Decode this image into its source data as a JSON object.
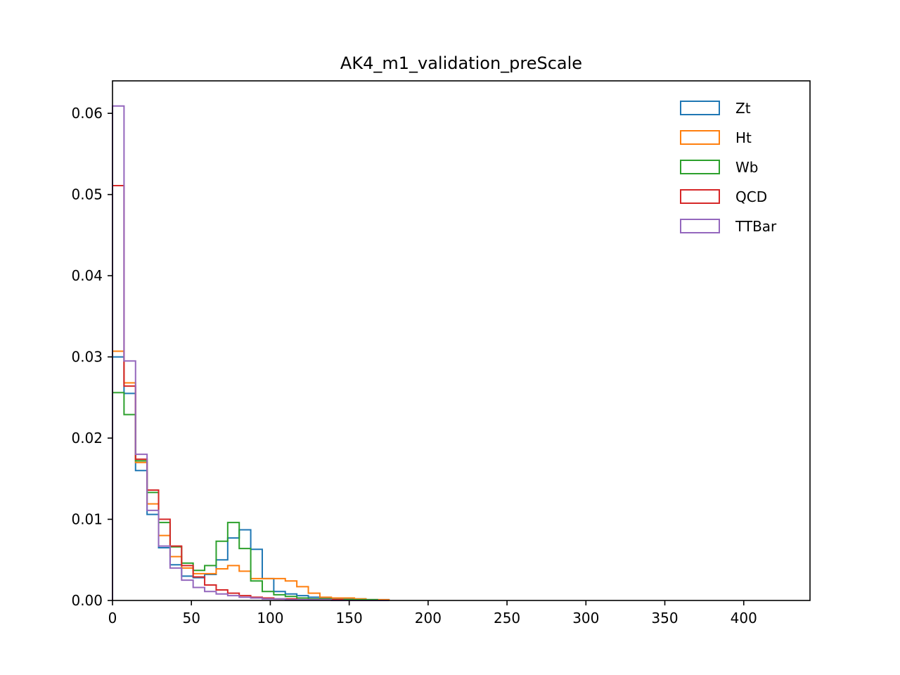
{
  "chart_data": {
    "type": "histogram",
    "title": "AK4_m1_validation_preScale",
    "xlabel": "",
    "ylabel": "",
    "xlim": [
      0,
      442
    ],
    "ylim": [
      0,
      0.064
    ],
    "x_ticks": [
      0,
      50,
      100,
      150,
      200,
      250,
      300,
      350,
      400
    ],
    "y_ticks": [
      0.0,
      0.01,
      0.02,
      0.03,
      0.04,
      0.05,
      0.06
    ],
    "x_tick_labels": [
      "0",
      "50",
      "100",
      "150",
      "200",
      "250",
      "300",
      "350",
      "400"
    ],
    "y_tick_labels": [
      "0.00",
      "0.01",
      "0.02",
      "0.03",
      "0.04",
      "0.05",
      "0.06"
    ],
    "legend_position": "top-right",
    "grid": false,
    "bin_edges": [
      0,
      7.3,
      14.6,
      21.9,
      29.2,
      36.5,
      43.8,
      51.1,
      58.4,
      65.7,
      73.0,
      80.3,
      87.6,
      94.9,
      102.2,
      109.5,
      116.8,
      124.1,
      131.4,
      138.7,
      146.0,
      153.3,
      160.6,
      167.9,
      175.2
    ],
    "series": [
      {
        "name": "Zt",
        "color": "#1f77b4",
        "values": [
          0.03,
          0.0255,
          0.016,
          0.0106,
          0.0065,
          0.0044,
          0.003,
          0.0028,
          0.0032,
          0.005,
          0.0077,
          0.0087,
          0.0063,
          0.0027,
          0.0011,
          0.0008,
          0.0006,
          0.0004,
          0.0003,
          0.0002,
          0.0002,
          0.0002,
          0.0001,
          0.0001
        ]
      },
      {
        "name": "Ht",
        "color": "#ff7f0e",
        "values": [
          0.0307,
          0.0268,
          0.017,
          0.0119,
          0.008,
          0.0054,
          0.004,
          0.0033,
          0.0033,
          0.0039,
          0.0043,
          0.0036,
          0.0027,
          0.0027,
          0.0027,
          0.0024,
          0.0017,
          0.0009,
          0.0004,
          0.0003,
          0.0003,
          0.0002,
          0.0001,
          0.0001
        ]
      },
      {
        "name": "Wb",
        "color": "#2ca02c",
        "values": [
          0.0256,
          0.0229,
          0.0172,
          0.0133,
          0.0096,
          0.0066,
          0.0046,
          0.0037,
          0.0043,
          0.0073,
          0.0096,
          0.0064,
          0.0024,
          0.0011,
          0.0007,
          0.0005,
          0.0003,
          0.0002,
          0.0002,
          0.0001,
          0.0001,
          0.0001,
          0.0001,
          0.0
        ]
      },
      {
        "name": "QCD",
        "color": "#d62728",
        "values": [
          0.0511,
          0.0264,
          0.0174,
          0.0136,
          0.01,
          0.0067,
          0.0043,
          0.0029,
          0.0019,
          0.0013,
          0.0009,
          0.0006,
          0.0004,
          0.0003,
          0.0002,
          0.0002,
          0.0001,
          0.0001,
          0.0001,
          0.0001,
          0.0,
          0.0,
          0.0,
          0.0
        ]
      },
      {
        "name": "TTBar",
        "color": "#9467bd",
        "values": [
          0.0609,
          0.0295,
          0.018,
          0.0111,
          0.0067,
          0.004,
          0.0025,
          0.0016,
          0.0011,
          0.0008,
          0.0006,
          0.0004,
          0.0003,
          0.0002,
          0.0002,
          0.0001,
          0.0001,
          0.0001,
          0.0001,
          0.0,
          0.0,
          0.0,
          0.0,
          0.0
        ]
      }
    ]
  }
}
